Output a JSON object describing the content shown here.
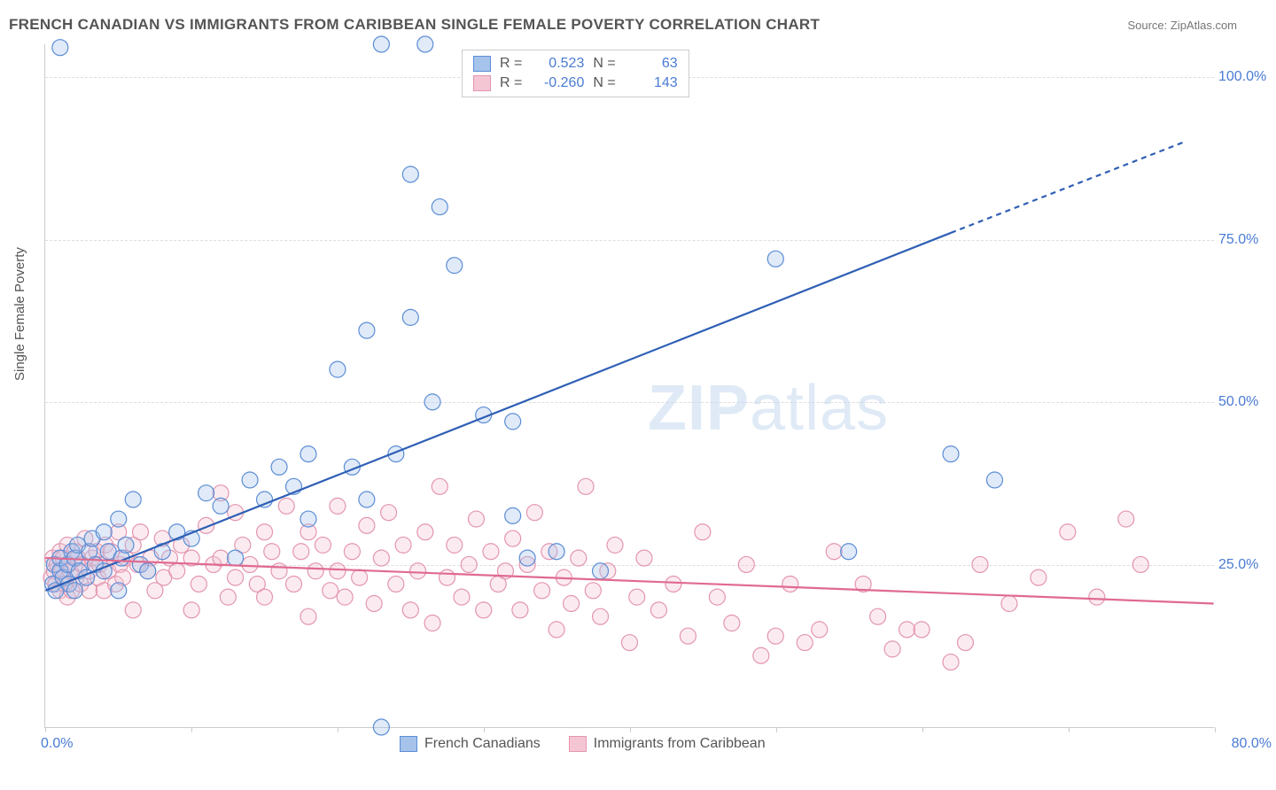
{
  "header": {
    "title": "FRENCH CANADIAN VS IMMIGRANTS FROM CARIBBEAN SINGLE FEMALE POVERTY CORRELATION CHART",
    "source": "Source: ZipAtlas.com"
  },
  "chart": {
    "type": "scatter",
    "ylabel": "Single Female Poverty",
    "xlim": [
      0,
      80
    ],
    "ylim": [
      0,
      105
    ],
    "y_gridlines": [
      25,
      50,
      75,
      100
    ],
    "y_tick_labels": [
      "25.0%",
      "50.0%",
      "75.0%",
      "100.0%"
    ],
    "x_ticks": [
      0,
      10,
      20,
      30,
      40,
      50,
      60,
      70,
      80
    ],
    "x_start_label": "0.0%",
    "x_end_label": "80.0%",
    "grid_color": "#dddddd",
    "axis_color": "#cccccc",
    "background_color": "#ffffff",
    "marker_radius": 9,
    "marker_stroke_width": 1.2,
    "marker_fill_opacity": 0.35,
    "line_width": 2.2,
    "watermark": "ZIPatlas",
    "series_a": {
      "label": "French Canadians",
      "color_fill": "#a6c3eb",
      "color_stroke": "#5b8dd6",
      "line_color": "#2e5fb5",
      "R": "0.523",
      "N": "63",
      "trend": {
        "x1": 0,
        "y1": 21,
        "x2": 62,
        "y2": 76,
        "x2_dash": 78,
        "y2_dash": 90
      },
      "points": [
        [
          0.5,
          22
        ],
        [
          0.7,
          21
        ],
        [
          0.6,
          25
        ],
        [
          1,
          24
        ],
        [
          1,
          26
        ],
        [
          1.2,
          23
        ],
        [
          1.5,
          25
        ],
        [
          1.6,
          22
        ],
        [
          1.8,
          27
        ],
        [
          2,
          21
        ],
        [
          2,
          26
        ],
        [
          2.2,
          28
        ],
        [
          2.3,
          24
        ],
        [
          2.8,
          23
        ],
        [
          3,
          27
        ],
        [
          3.2,
          29
        ],
        [
          3.4,
          25
        ],
        [
          4,
          24
        ],
        [
          4,
          30
        ],
        [
          4.3,
          27
        ],
        [
          5,
          32
        ],
        [
          5,
          21
        ],
        [
          5.2,
          26
        ],
        [
          5.5,
          28
        ],
        [
          6,
          35
        ],
        [
          6.5,
          25
        ],
        [
          7,
          24
        ],
        [
          8,
          27
        ],
        [
          9,
          30
        ],
        [
          10,
          29
        ],
        [
          11,
          36
        ],
        [
          12,
          34
        ],
        [
          13,
          26
        ],
        [
          14,
          38
        ],
        [
          15,
          35
        ],
        [
          16,
          40
        ],
        [
          17,
          37
        ],
        [
          18,
          42
        ],
        [
          18,
          32
        ],
        [
          20,
          55
        ],
        [
          21,
          40
        ],
        [
          22,
          61
        ],
        [
          22,
          35
        ],
        [
          23,
          105
        ],
        [
          24,
          42
        ],
        [
          25,
          63
        ],
        [
          25,
          85
        ],
        [
          26,
          105
        ],
        [
          26.5,
          50
        ],
        [
          27,
          80
        ],
        [
          28,
          71
        ],
        [
          30,
          48
        ],
        [
          32,
          32.5
        ],
        [
          32,
          47
        ],
        [
          33,
          26
        ],
        [
          35,
          27
        ],
        [
          38,
          24
        ],
        [
          50,
          72
        ],
        [
          55,
          27
        ],
        [
          62,
          42
        ],
        [
          65,
          38
        ],
        [
          23,
          0
        ],
        [
          1,
          104.5
        ]
      ]
    },
    "series_b": {
      "label": "Immigrants from Caribbean",
      "color_fill": "#f4c6d4",
      "color_stroke": "#e495af",
      "line_color": "#e06a90",
      "R": "-0.260",
      "N": "143",
      "trend": {
        "x1": 0,
        "y1": 26,
        "x2": 80,
        "y2": 19
      },
      "points": [
        [
          0.4,
          23
        ],
        [
          0.5,
          26
        ],
        [
          0.6,
          24
        ],
        [
          0.7,
          22
        ],
        [
          0.8,
          25
        ],
        [
          1,
          27
        ],
        [
          1,
          21
        ],
        [
          1.1,
          24
        ],
        [
          1.2,
          26
        ],
        [
          1.3,
          22
        ],
        [
          1.5,
          20
        ],
        [
          1.5,
          28
        ],
        [
          1.6,
          25
        ],
        [
          1.7,
          24
        ],
        [
          1.8,
          21
        ],
        [
          2,
          27
        ],
        [
          2.1,
          23
        ],
        [
          2.2,
          26
        ],
        [
          2.4,
          22
        ],
        [
          2.5,
          25
        ],
        [
          2.7,
          29
        ],
        [
          3,
          24
        ],
        [
          3,
          21
        ],
        [
          3.2,
          26
        ],
        [
          3.5,
          27
        ],
        [
          3.6,
          23
        ],
        [
          3.7,
          25
        ],
        [
          4,
          21
        ],
        [
          4.1,
          28
        ],
        [
          4.3,
          24
        ],
        [
          4.5,
          27
        ],
        [
          4.8,
          22
        ],
        [
          5,
          30
        ],
        [
          5.1,
          25
        ],
        [
          5.3,
          23
        ],
        [
          5.5,
          26
        ],
        [
          6,
          28
        ],
        [
          6,
          18
        ],
        [
          6.3,
          25
        ],
        [
          6.5,
          30
        ],
        [
          7,
          24
        ],
        [
          7.2,
          26
        ],
        [
          7.5,
          21
        ],
        [
          8,
          29
        ],
        [
          8.1,
          23
        ],
        [
          8.5,
          26
        ],
        [
          9,
          24
        ],
        [
          9.3,
          28
        ],
        [
          10,
          26
        ],
        [
          10,
          18
        ],
        [
          10.5,
          22
        ],
        [
          11,
          31
        ],
        [
          11.5,
          25
        ],
        [
          12,
          36
        ],
        [
          12,
          26
        ],
        [
          12.5,
          20
        ],
        [
          13,
          33
        ],
        [
          13,
          23
        ],
        [
          13.5,
          28
        ],
        [
          14,
          25
        ],
        [
          14.5,
          22
        ],
        [
          15,
          30
        ],
        [
          15,
          20
        ],
        [
          15.5,
          27
        ],
        [
          16,
          24
        ],
        [
          16.5,
          34
        ],
        [
          17,
          22
        ],
        [
          17.5,
          27
        ],
        [
          18,
          30
        ],
        [
          18,
          17
        ],
        [
          18.5,
          24
        ],
        [
          19,
          28
        ],
        [
          19.5,
          21
        ],
        [
          20,
          34
        ],
        [
          20,
          24
        ],
        [
          20.5,
          20
        ],
        [
          21,
          27
        ],
        [
          21.5,
          23
        ],
        [
          22,
          31
        ],
        [
          22.5,
          19
        ],
        [
          23,
          26
        ],
        [
          23.5,
          33
        ],
        [
          24,
          22
        ],
        [
          24.5,
          28
        ],
        [
          25,
          18
        ],
        [
          25.5,
          24
        ],
        [
          26,
          30
        ],
        [
          26.5,
          16
        ],
        [
          27,
          37
        ],
        [
          27.5,
          23
        ],
        [
          28,
          28
        ],
        [
          28.5,
          20
        ],
        [
          29,
          25
        ],
        [
          29.5,
          32
        ],
        [
          30,
          18
        ],
        [
          30.5,
          27
        ],
        [
          31,
          22
        ],
        [
          31.5,
          24
        ],
        [
          32,
          29
        ],
        [
          32.5,
          18
        ],
        [
          33,
          25
        ],
        [
          33.5,
          33
        ],
        [
          34,
          21
        ],
        [
          34.5,
          27
        ],
        [
          35,
          15
        ],
        [
          35.5,
          23
        ],
        [
          36,
          19
        ],
        [
          36.5,
          26
        ],
        [
          37,
          37
        ],
        [
          37.5,
          21
        ],
        [
          38,
          17
        ],
        [
          38.5,
          24
        ],
        [
          39,
          28
        ],
        [
          40,
          13
        ],
        [
          40.5,
          20
        ],
        [
          41,
          26
        ],
        [
          42,
          18
        ],
        [
          43,
          22
        ],
        [
          44,
          14
        ],
        [
          45,
          30
        ],
        [
          46,
          20
        ],
        [
          47,
          16
        ],
        [
          48,
          25
        ],
        [
          49,
          11
        ],
        [
          50,
          14
        ],
        [
          51,
          22
        ],
        [
          52,
          13
        ],
        [
          53,
          15
        ],
        [
          54,
          27
        ],
        [
          56,
          22
        ],
        [
          57,
          17
        ],
        [
          58,
          12
        ],
        [
          59,
          15
        ],
        [
          60,
          15
        ],
        [
          62,
          10
        ],
        [
          63,
          13
        ],
        [
          64,
          25
        ],
        [
          66,
          19
        ],
        [
          68,
          23
        ],
        [
          70,
          30
        ],
        [
          72,
          20
        ],
        [
          74,
          32
        ],
        [
          75,
          25
        ]
      ]
    }
  },
  "legend_top": {
    "r_label": "R =",
    "n_label": "N ="
  }
}
